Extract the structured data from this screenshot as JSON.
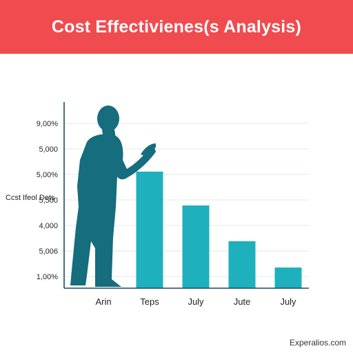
{
  "header": {
    "title": "Cost Effectivienes(s Analysis)"
  },
  "footer": {
    "watermark": "Experalios.com"
  },
  "colors": {
    "banner": "#f04b4f",
    "bar": "#1fb0bd",
    "figure": "#156d7e",
    "axis": "#1d4a5a",
    "grid": "#e3e8ea",
    "text": "#1f1f1f"
  },
  "chart_data": {
    "type": "bar",
    "title": "",
    "ylabel": "Ccst Ifeol Dots",
    "xlabel": "",
    "categories": [
      "Arin",
      "Teps",
      "July",
      "Jute",
      "July"
    ],
    "values": [
      null,
      4800,
      3900,
      2950,
      2250
    ],
    "yticks": [
      "9,00%",
      "5,000",
      "5,00%",
      "5,500",
      "4,000",
      "5,006",
      "1,00%"
    ],
    "ylim": [
      1700,
      6100
    ],
    "grid": true,
    "legend": "none"
  }
}
